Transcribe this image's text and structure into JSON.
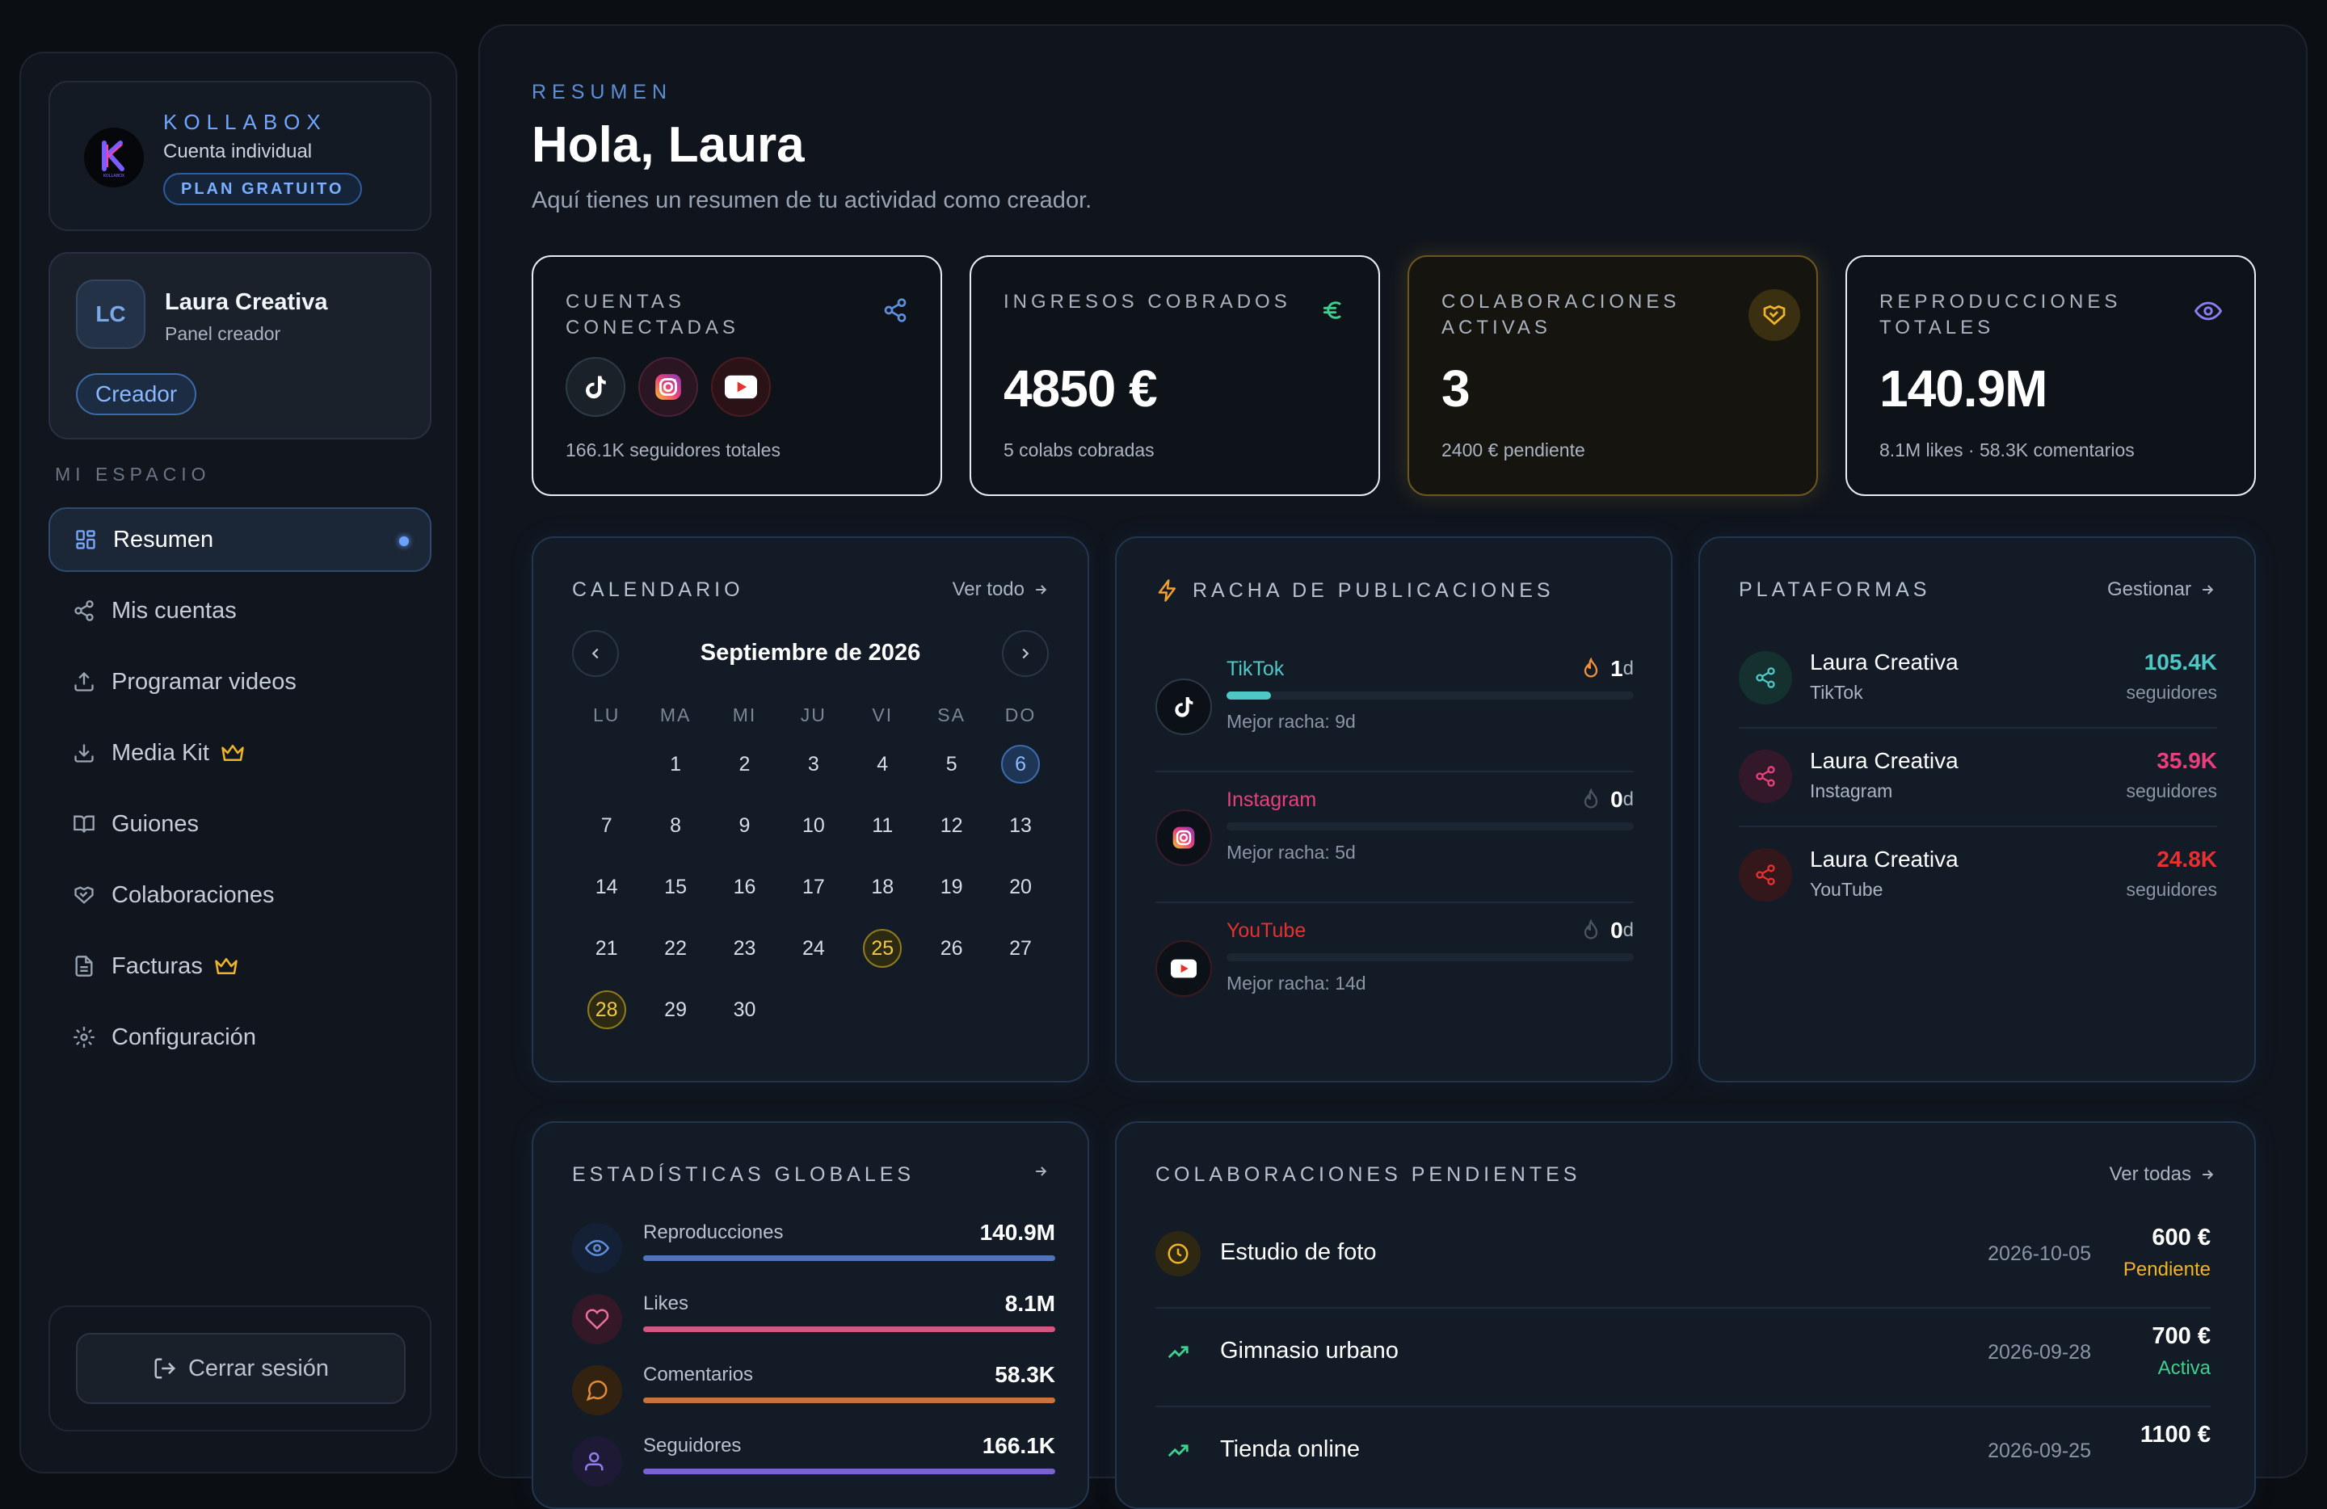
{
  "brand": {
    "name": "KOLLABOX",
    "account_type": "Cuenta individual",
    "plan": "PLAN GRATUITO",
    "logo_text": "KOLLABOX"
  },
  "user": {
    "initials": "LC",
    "name": "Laura Creativa",
    "role": "Panel creador",
    "badge": "Creador"
  },
  "sidebar": {
    "section": "MI ESPACIO",
    "items": [
      {
        "label": "Resumen",
        "icon": "dashboard-icon",
        "active": true
      },
      {
        "label": "Mis cuentas",
        "icon": "share-icon"
      },
      {
        "label": "Programar videos",
        "icon": "upload-icon"
      },
      {
        "label": "Media Kit",
        "icon": "download-icon",
        "premium": true
      },
      {
        "label": "Guiones",
        "icon": "book-icon"
      },
      {
        "label": "Colaboraciones",
        "icon": "handshake-icon"
      },
      {
        "label": "Facturas",
        "icon": "document-icon",
        "premium": true
      },
      {
        "label": "Configuración",
        "icon": "gear-icon"
      }
    ],
    "logout": "Cerrar sesión"
  },
  "header": {
    "kicker": "RESUMEN",
    "greeting": "Hola, Laura",
    "subtitle": "Aquí tienes un resumen de tu actividad como creador."
  },
  "stats": {
    "accounts": {
      "label": "CUENTAS CONECTADAS",
      "sub": "166.1K seguidores totales",
      "icon": "share-icon"
    },
    "income": {
      "label": "INGRESOS COBRADOS",
      "value": "4850 €",
      "sub": "5 colabs cobradas",
      "icon": "euro-icon"
    },
    "collabs": {
      "label": "COLABORACIONES ACTIVAS",
      "value": "3",
      "sub": "2400 € pendiente",
      "icon": "handshake-icon"
    },
    "plays": {
      "label": "REPRODUCCIONES TOTALES",
      "value": "140.9M",
      "sub": "8.1M likes · 58.3K comentarios",
      "icon": "eye-icon"
    }
  },
  "calendar": {
    "title": "CALENDARIO",
    "link": "Ver todo",
    "month": "Septiembre de 2026",
    "weekdays": [
      "LU",
      "MA",
      "MI",
      "JU",
      "VI",
      "SA",
      "DO"
    ],
    "weeks": [
      [
        "",
        "1",
        "2",
        "3",
        "4",
        "5",
        "6"
      ],
      [
        "7",
        "8",
        "9",
        "10",
        "11",
        "12",
        "13"
      ],
      [
        "14",
        "15",
        "16",
        "17",
        "18",
        "19",
        "20"
      ],
      [
        "21",
        "22",
        "23",
        "24",
        "25",
        "26",
        "27"
      ],
      [
        "28",
        "29",
        "30",
        "",
        "",
        "",
        ""
      ]
    ],
    "today": "6",
    "events": [
      "25",
      "28"
    ]
  },
  "streaks": {
    "title": "RACHA DE PUBLICACIONES",
    "items": [
      {
        "platform": "TikTok",
        "count": "1",
        "unit": "d",
        "best": "Mejor racha: 9d",
        "color": "#4fc7c4",
        "progress": 0.11
      },
      {
        "platform": "Instagram",
        "count": "0",
        "unit": "d",
        "best": "Mejor racha: 5d",
        "color": "#e8407c",
        "progress": 0
      },
      {
        "platform": "YouTube",
        "count": "0",
        "unit": "d",
        "best": "Mejor racha: 14d",
        "color": "#e5312f",
        "progress": 0
      }
    ]
  },
  "platforms": {
    "title": "PLATAFORMAS",
    "link": "Gestionar",
    "items": [
      {
        "name": "Laura Creativa",
        "network": "TikTok",
        "value": "105.4K",
        "unit": "seguidores",
        "color": "#4fc7c4"
      },
      {
        "name": "Laura Creativa",
        "network": "Instagram",
        "value": "35.9K",
        "unit": "seguidores",
        "color": "#e8407c"
      },
      {
        "name": "Laura Creativa",
        "network": "YouTube",
        "value": "24.8K",
        "unit": "seguidores",
        "color": "#e5312f"
      }
    ]
  },
  "global_stats": {
    "title": "ESTADÍSTICAS GLOBALES",
    "items": [
      {
        "label": "Reproducciones",
        "value": "140.9M",
        "color": "#4f74b8",
        "icon": "eye-icon"
      },
      {
        "label": "Likes",
        "value": "8.1M",
        "color": "#d0577f",
        "icon": "heart-icon"
      },
      {
        "label": "Comentarios",
        "value": "58.3K",
        "color": "#c7733a",
        "icon": "comment-icon"
      },
      {
        "label": "Seguidores",
        "value": "166.1K",
        "color": "#7a63d0",
        "icon": "users-icon"
      }
    ]
  },
  "pending": {
    "title": "COLABORACIONES PENDIENTES",
    "link": "Ver todas",
    "items": [
      {
        "name": "Estudio de foto",
        "date": "2026-10-05",
        "amount": "600 €",
        "status": "Pendiente",
        "status_color": "#f0b429",
        "icon": "clock-icon"
      },
      {
        "name": "Gimnasio urbano",
        "date": "2026-09-28",
        "amount": "700 €",
        "status": "Activa",
        "status_color": "#3fcf8e",
        "icon": "trend-up-icon"
      },
      {
        "name": "Tienda online",
        "date": "2026-09-25",
        "amount": "1100 €",
        "status": "",
        "status_color": "#3fcf8e",
        "icon": "trend-up-icon"
      }
    ]
  }
}
